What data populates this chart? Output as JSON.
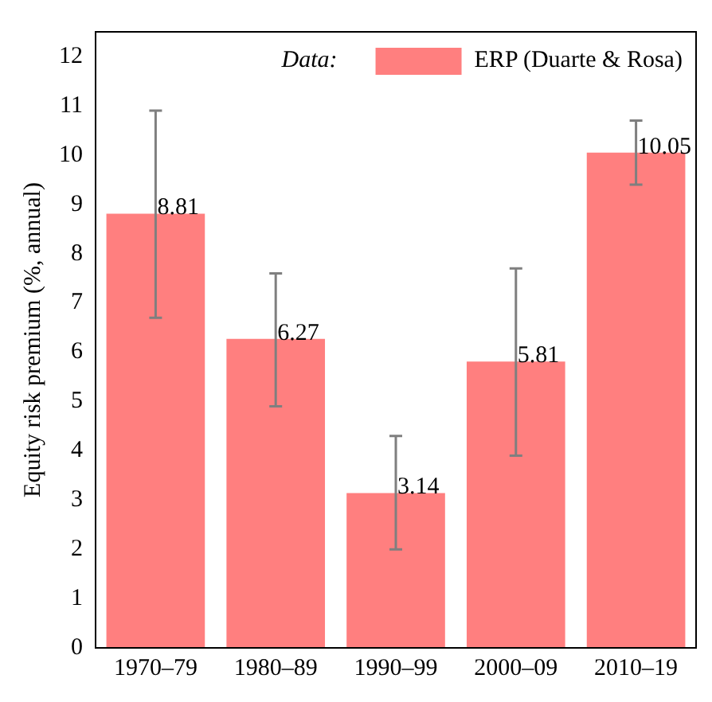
{
  "chart_data": {
    "type": "bar",
    "ylabel": "Equity risk premium (%, annual)",
    "legend_title": "Data:",
    "legend": "top right",
    "categories": [
      "1970–79",
      "1980–89",
      "1990–99",
      "2000–09",
      "2010–19"
    ],
    "series": [
      {
        "name": "ERP (Duarte & Rosa)",
        "color": "#ff7f7f",
        "values": [
          8.81,
          6.27,
          3.14,
          5.81,
          10.05
        ],
        "errors": [
          [
            6.7,
            10.9
          ],
          [
            4.9,
            7.6
          ],
          [
            2.0,
            4.3
          ],
          [
            3.9,
            7.7
          ],
          [
            9.4,
            10.7
          ]
        ]
      }
    ],
    "data_labels": true,
    "ylim": [
      0,
      12.5
    ],
    "yticks": [
      0,
      1,
      2,
      3,
      4,
      5,
      6,
      7,
      8,
      9,
      10,
      11,
      12
    ],
    "grid": false
  }
}
